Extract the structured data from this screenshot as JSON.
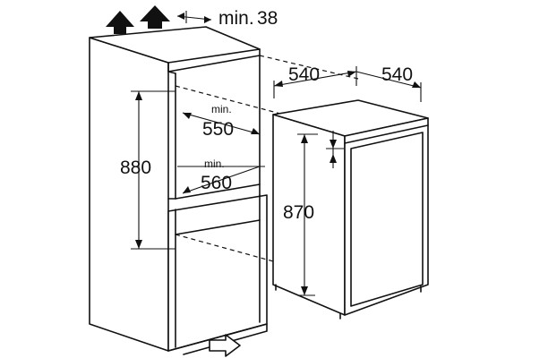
{
  "labels": {
    "top_clearance_min": "min.",
    "top_clearance_value": "38",
    "appliance_width": "540",
    "appliance_depth": "540",
    "niche_height": "880",
    "niche_depth_upper_min": "min.",
    "niche_depth_upper_value": "550",
    "niche_depth_lower_min": "min.",
    "niche_depth_lower_value": "560",
    "appliance_height": "870"
  },
  "colors": {
    "line": "#111111",
    "background": "#ffffff"
  },
  "icons": [
    "air-flow-up-arrow",
    "air-flow-up-arrow",
    "air-flow-in-arrow"
  ]
}
